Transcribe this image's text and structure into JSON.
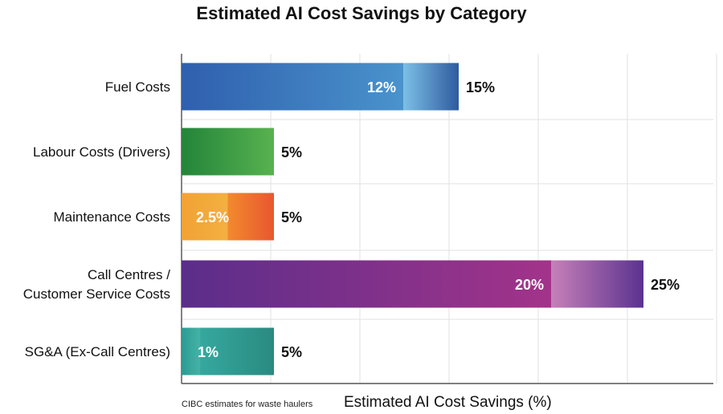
{
  "chart_data": {
    "type": "bar",
    "orientation": "horizontal",
    "title": "Estimated AI Cost Savings by Category",
    "xlabel": "Estimated AI Cost Savings (%)",
    "ylabel": "",
    "note": "CIBC estimates for waste haulers",
    "grid": true,
    "categories": [
      "Fuel Costs",
      "Labour Costs (Drivers)",
      "Maintenance Costs",
      "Call Centres / Customer Service Costs",
      "SG&A (Ex-Call Centres)"
    ],
    "category_lines": [
      [
        "Fuel Costs"
      ],
      [
        "Labour Costs (Drivers)"
      ],
      [
        "Maintenance Costs"
      ],
      [
        "Call Centres /",
        "Customer Service Costs"
      ],
      [
        "SG&A (Ex-Call Centres)"
      ]
    ],
    "values": [
      15,
      5,
      5,
      25,
      5
    ],
    "value_labels": [
      "15%",
      "5%",
      "5%",
      "25%",
      "5%"
    ],
    "inner_values": [
      12,
      null,
      2.5,
      20,
      1
    ],
    "inner_labels": [
      "12%",
      null,
      "2.5%",
      "20%",
      "1%"
    ],
    "colors": [
      [
        "#2f5fae",
        "#4a93cc",
        "#7cc0e6",
        "#2f5b9e"
      ],
      [
        "#23843a",
        "#58b24f",
        null,
        null
      ],
      [
        "#f2a234",
        "#f3b040",
        "#f28a2e",
        "#e8572f"
      ],
      [
        "#5a2e8a",
        "#a3338a",
        "#c680b8",
        "#5b3290"
      ],
      [
        "#2b9c92",
        "#45b2a6",
        "#36a89e",
        "#2a8a80"
      ]
    ]
  }
}
